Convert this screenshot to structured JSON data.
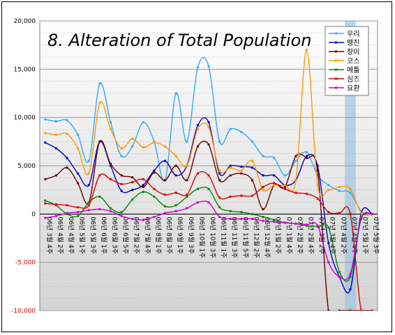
{
  "chart_data": {
    "type": "line",
    "title": "8. Alteration of Total Population",
    "ylim": [
      -10000,
      20000
    ],
    "y_ticks": [
      20000,
      15000,
      10000,
      5000,
      0,
      -5000,
      -10000
    ],
    "y_tick_labels": [
      "20,000",
      "15,000",
      "10,000",
      "5,000",
      "0",
      "-5,000",
      "-10,000"
    ],
    "negative_tick_color": "#cc0000",
    "grid": true,
    "legend_position": "top-right",
    "highlight_category": "07년 4월 4주",
    "categories": [
      "06년 3월 4주",
      "06년 4월 2주",
      "06년 4월 4주",
      "06년 5월 1주",
      "06년 5월 3주",
      "06년 6월 1주",
      "06년 6월 3주",
      "06년 6월 5주",
      "06년 7월 2주",
      "06년 7월 4주",
      "06년 8월 1주",
      "06년 8월 3주",
      "06년 9월 1주",
      "06년 9월 3주",
      "06년 10월 1주",
      "06년 10월 3주",
      "06년 11월 1주",
      "06년 11월 3주",
      "06년 11월 5주",
      "06년 12월 2주",
      "06년 12월 4주",
      "07년 1월 2주",
      "07년 1월 4주",
      "07년 2월 2주",
      "07년 2월 4주",
      "07년 3월 2주",
      "07년 3월 4주",
      "07년 4월 2주",
      "07년 4월 4주",
      "07년 5월 1주",
      "07년 5월 3주"
    ],
    "series": [
      {
        "name": "우리",
        "color": "#33aaff",
        "values": [
          9800,
          9600,
          9700,
          8200,
          5500,
          13500,
          9500,
          6000,
          7000,
          9500,
          7500,
          3500,
          12500,
          7500,
          15200,
          15300,
          7500,
          8800,
          8500,
          7500,
          6000,
          5800,
          4000,
          5500,
          6400,
          4000,
          3000,
          2400,
          2200,
          300,
          0
        ]
      },
      {
        "name": "땡진",
        "color": "#0000cc",
        "values": [
          7400,
          6800,
          5800,
          4200,
          3000,
          7500,
          5000,
          2400,
          2500,
          3000,
          4500,
          5500,
          4000,
          5000,
          9200,
          9500,
          4200,
          5000,
          4900,
          4800,
          4000,
          4000,
          3000,
          3500,
          6000,
          5000,
          -3000,
          -6500,
          -7800,
          100,
          0
        ]
      },
      {
        "name": "장미",
        "color": "#660000",
        "values": [
          3600,
          4000,
          4800,
          3200,
          1200,
          7500,
          5200,
          4000,
          3800,
          2800,
          4300,
          3500,
          5000,
          3500,
          7000,
          7200,
          3500,
          4000,
          4200,
          3500,
          500,
          3000,
          2800,
          6000,
          5800,
          4500,
          -10000,
          -10000,
          -10000,
          -10000,
          -10000
        ]
      },
      {
        "name": "코스",
        "color": "#ff9900",
        "values": [
          8400,
          8200,
          8300,
          6800,
          4200,
          11500,
          8800,
          6800,
          7800,
          6900,
          7400,
          7000,
          6000,
          5000,
          8800,
          9000,
          4500,
          4800,
          4500,
          5500,
          2500,
          3000,
          3000,
          3500,
          17000,
          3000,
          2500,
          2800,
          2600,
          100,
          0
        ]
      },
      {
        "name": "메틀",
        "color": "#008800",
        "values": [
          1400,
          900,
          0,
          -200,
          1200,
          1800,
          600,
          200,
          1500,
          2300,
          1800,
          800,
          900,
          1800,
          2600,
          2600,
          700,
          300,
          200,
          0,
          -300,
          -600,
          -900,
          -1000,
          -1200,
          -1300,
          -1400,
          -6000,
          -6500,
          -500,
          0
        ]
      },
      {
        "name": "심즈",
        "color": "#dd0000",
        "values": [
          1100,
          1000,
          900,
          700,
          900,
          4000,
          3600,
          3100,
          3300,
          3600,
          2600,
          2000,
          2200,
          2000,
          4200,
          4000,
          1700,
          1800,
          1900,
          1900,
          2800,
          3200,
          2600,
          2200,
          2100,
          1600,
          200,
          100,
          0,
          -10000,
          -10000
        ]
      },
      {
        "name": "요환",
        "color": "#cc00cc",
        "values": [
          -400,
          -200,
          100,
          200,
          400,
          500,
          300,
          -200,
          -500,
          -600,
          -300,
          100,
          300,
          600,
          1200,
          1200,
          -300,
          -500,
          -500,
          -500,
          -700,
          -800,
          -900,
          -1000,
          -1100,
          -1200,
          -5000,
          -6500,
          -6200,
          -400,
          0
        ]
      }
    ]
  }
}
